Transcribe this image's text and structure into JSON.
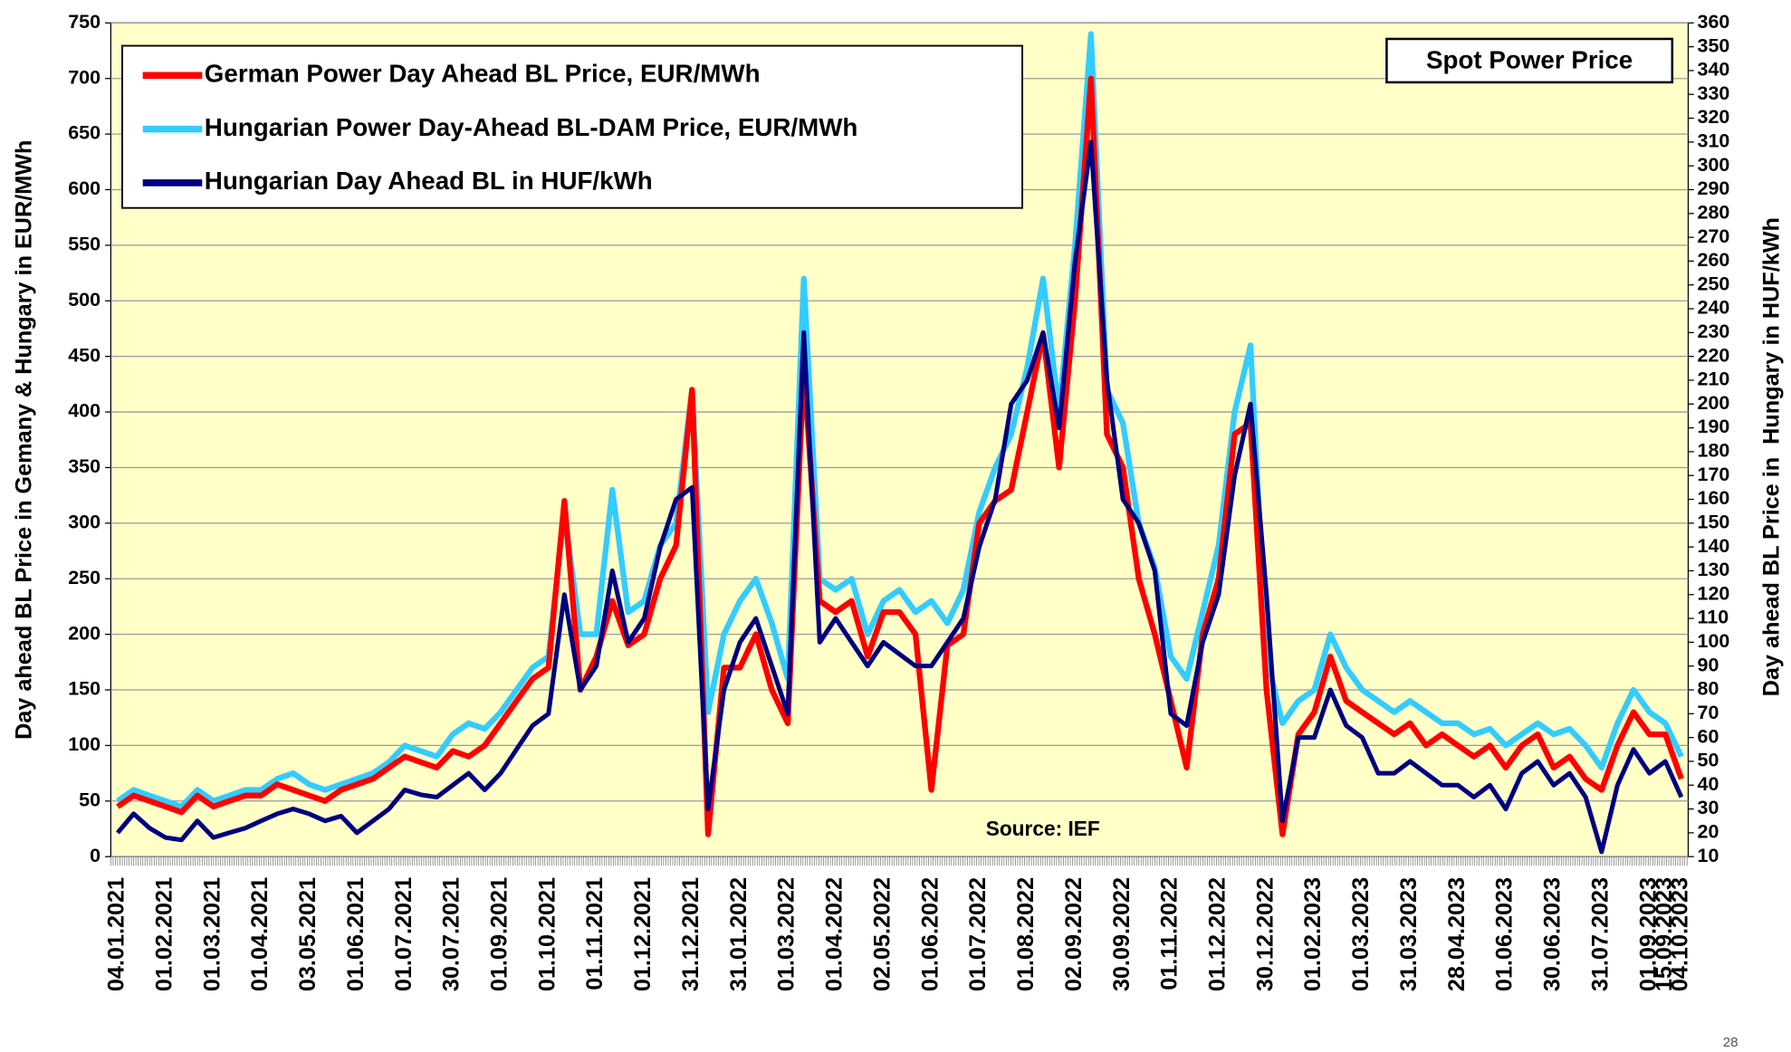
{
  "chart_data": {
    "type": "line",
    "title": "Spot Power Price",
    "annotation": "Source: IEF",
    "page_number": "28",
    "ylabel": "Day ahead BL Price in Gemany & Hungary in EUR/MWh",
    "y2label": "Day ahead BL Price in  Hungary in HUF/kWh",
    "ylim": [
      0,
      750
    ],
    "yticks": [
      0,
      50,
      100,
      150,
      200,
      250,
      300,
      350,
      400,
      450,
      500,
      550,
      600,
      650,
      700,
      750
    ],
    "y2lim": [
      10,
      360
    ],
    "y2ticks": [
      10,
      20,
      30,
      40,
      50,
      60,
      70,
      80,
      90,
      100,
      110,
      120,
      130,
      140,
      150,
      160,
      170,
      180,
      190,
      200,
      210,
      220,
      230,
      240,
      250,
      260,
      270,
      280,
      290,
      300,
      310,
      320,
      330,
      340,
      350,
      360
    ],
    "grid": true,
    "legend": "upper left",
    "categories": [
      "04.01.2021",
      null,
      null,
      "01.02.2021",
      null,
      null,
      "01.03.2021",
      null,
      null,
      "01.04.2021",
      null,
      null,
      "03.05.2021",
      null,
      null,
      "01.06.2021",
      null,
      null,
      "01.07.2021",
      null,
      null,
      "30.07.2021",
      null,
      null,
      "01.09.2021",
      null,
      null,
      "01.10.2021",
      null,
      null,
      "01.11.2021",
      null,
      null,
      "01.12.2021",
      null,
      null,
      "31.12.2021",
      null,
      null,
      "31.01.2022",
      null,
      null,
      "01.03.2022",
      null,
      null,
      "01.04.2022",
      null,
      null,
      "02.05.2022",
      null,
      null,
      "01.06.2022",
      null,
      null,
      "01.07.2022",
      null,
      null,
      "01.08.2022",
      null,
      null,
      "02.09.2022",
      null,
      null,
      "30.09.2022",
      null,
      null,
      "01.11.2022",
      null,
      null,
      "01.12.2022",
      null,
      null,
      "30.12.2022",
      null,
      null,
      "01.02.2023",
      null,
      null,
      "01.03.2023",
      null,
      null,
      "31.03.2023",
      null,
      null,
      "28.04.2023",
      null,
      null,
      "01.06.2023",
      null,
      null,
      "30.06.2023",
      null,
      null,
      "31.07.2023",
      null,
      null,
      "01.09.2023",
      "15.09.2023",
      "04.10.2023"
    ],
    "series": [
      {
        "name": "German Power Day Ahead BL Price, EUR/MWh",
        "color": "#ff0000",
        "axis": "y",
        "values": [
          45,
          55,
          50,
          45,
          40,
          55,
          45,
          50,
          55,
          55,
          65,
          60,
          55,
          50,
          60,
          65,
          70,
          80,
          90,
          85,
          80,
          95,
          90,
          100,
          120,
          140,
          160,
          170,
          320,
          150,
          180,
          230,
          190,
          200,
          250,
          280,
          420,
          20,
          170,
          170,
          200,
          150,
          120,
          440,
          230,
          220,
          230,
          180,
          220,
          220,
          200,
          60,
          190,
          200,
          300,
          320,
          330,
          400,
          470,
          350,
          500,
          700,
          380,
          350,
          250,
          200,
          140,
          80,
          200,
          250,
          380,
          390,
          150,
          20,
          110,
          130,
          180,
          140,
          130,
          120,
          110,
          120,
          100,
          110,
          100,
          90,
          100,
          80,
          100,
          110,
          80,
          90,
          70,
          60,
          100,
          130,
          110,
          110,
          70
        ]
      },
      {
        "name": "Hungarian Power Day-Ahead BL-DAM Price, EUR/MWh",
        "color": "#33ccff",
        "axis": "y",
        "values": [
          50,
          60,
          55,
          50,
          45,
          60,
          50,
          55,
          60,
          60,
          70,
          75,
          65,
          60,
          65,
          70,
          75,
          85,
          100,
          95,
          90,
          110,
          120,
          115,
          130,
          150,
          170,
          180,
          310,
          200,
          200,
          330,
          220,
          230,
          280,
          300,
          420,
          130,
          200,
          230,
          250,
          210,
          160,
          520,
          250,
          240,
          250,
          200,
          230,
          240,
          220,
          230,
          210,
          240,
          310,
          350,
          380,
          440,
          520,
          400,
          550,
          740,
          420,
          390,
          300,
          260,
          180,
          160,
          220,
          280,
          400,
          460,
          180,
          120,
          140,
          150,
          200,
          170,
          150,
          140,
          130,
          140,
          130,
          120,
          120,
          110,
          115,
          100,
          110,
          120,
          110,
          115,
          100,
          80,
          120,
          150,
          130,
          120,
          90
        ]
      },
      {
        "name": "Hungarian Day Ahead BL in HUF/kWh",
        "color": "#000080",
        "axis": "y2",
        "values": [
          20,
          28,
          22,
          18,
          17,
          25,
          18,
          20,
          22,
          25,
          28,
          30,
          28,
          25,
          27,
          20,
          25,
          30,
          38,
          36,
          35,
          40,
          45,
          38,
          45,
          55,
          65,
          70,
          120,
          80,
          90,
          130,
          100,
          110,
          140,
          160,
          165,
          30,
          80,
          100,
          110,
          90,
          70,
          230,
          100,
          110,
          100,
          90,
          100,
          95,
          90,
          90,
          100,
          110,
          140,
          160,
          200,
          210,
          230,
          190,
          260,
          310,
          210,
          160,
          150,
          130,
          70,
          65,
          100,
          120,
          170,
          200,
          120,
          25,
          60,
          60,
          80,
          65,
          60,
          45,
          45,
          50,
          45,
          40,
          40,
          35,
          40,
          30,
          45,
          50,
          40,
          45,
          35,
          12,
          40,
          55,
          45,
          50,
          35
        ]
      }
    ]
  }
}
